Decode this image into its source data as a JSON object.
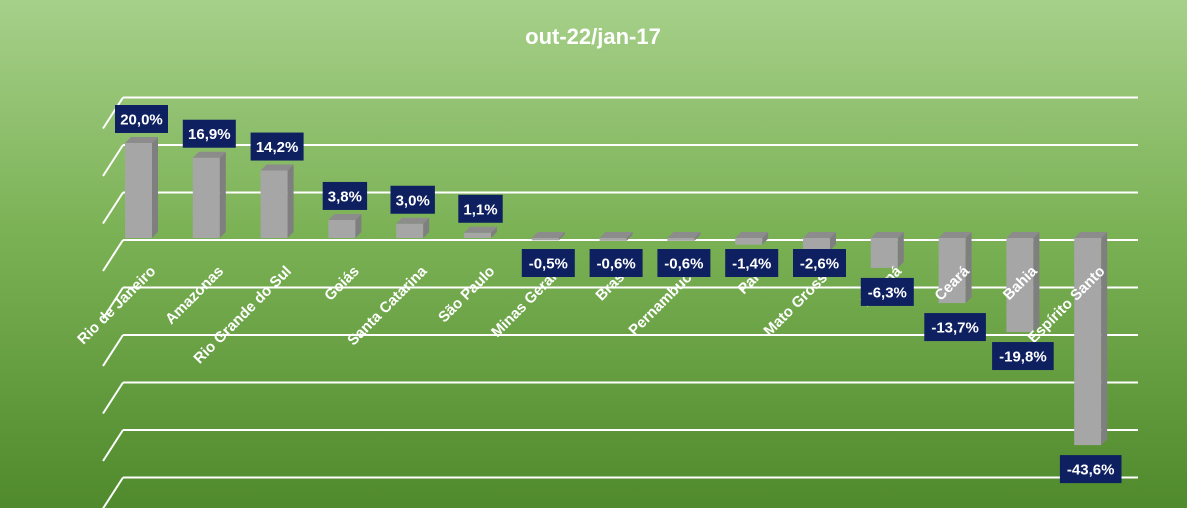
{
  "chart_data": {
    "type": "bar",
    "title": "out-22/jan-17",
    "categories": [
      "Rio de Janeiro",
      "Amazonas",
      "Rio Grande do Sul",
      "Goiás",
      "Santa Catarina",
      "São Paulo",
      "Minas Gerais",
      "Brasil",
      "Pernambuco",
      "Pará",
      "Mato Grosso",
      "Paraná",
      "Ceará",
      "Bahia",
      "Espírito Santo"
    ],
    "values": [
      20.0,
      16.9,
      14.2,
      3.8,
      3.0,
      1.1,
      -0.5,
      -0.6,
      -0.6,
      -1.4,
      -2.6,
      -6.3,
      -13.7,
      -19.8,
      -43.6
    ],
    "value_labels": [
      "20,0%",
      "16,9%",
      "14,2%",
      "3,8%",
      "3,0%",
      "1,1%",
      "-0,5%",
      "-0,6%",
      "-0,6%",
      "-1,4%",
      "-2,6%",
      "-6,3%",
      "-13,7%",
      "-19,8%",
      "-43,6%"
    ],
    "ylim": [
      -50,
      30
    ],
    "grid": true,
    "legend": "none",
    "colors": {
      "bar_front": "#a6a6a6",
      "bar_side": "#7f7f7f",
      "bar_top": "#8c8c8c",
      "label_box": "#0e2060",
      "text": "#ffffff",
      "grid": "#ffffff"
    }
  }
}
